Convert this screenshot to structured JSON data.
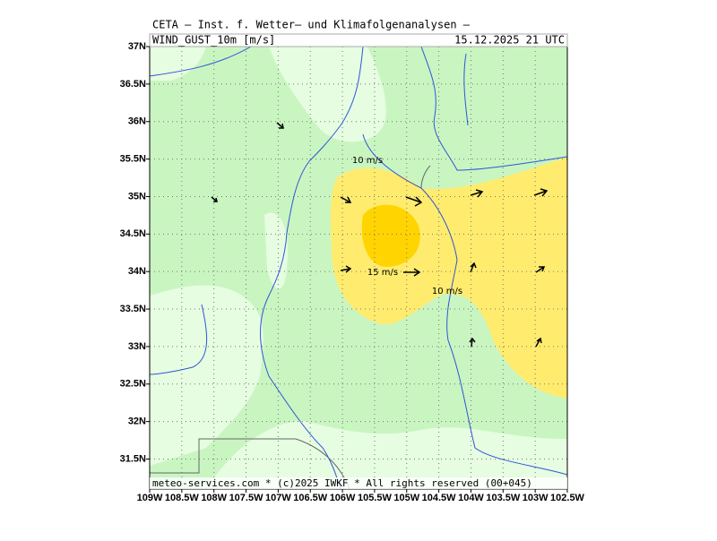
{
  "header": {
    "title": "CETA — Inst. f. Wetter— und Klimafolgenanalysen —",
    "variable": "WIND_GUST_10m [m/s]",
    "valid_time": "15.12.2025 21 UTC"
  },
  "footer": {
    "credit": "meteo-services.com * (c)2025 IWKF * All rights reserved (00+045)"
  },
  "contour_labels": [
    "10 m/s",
    "15 m/s",
    "10 m/s"
  ],
  "axes": {
    "lonlim": [
      -109,
      -102.5
    ],
    "latlim": [
      31.1,
      37
    ],
    "lon_ticks": [
      {
        "value": -109,
        "label": "109W"
      },
      {
        "value": -108.5,
        "label": "108.5W"
      },
      {
        "value": -108,
        "label": "108W"
      },
      {
        "value": -107.5,
        "label": "107.5W"
      },
      {
        "value": -107,
        "label": "107W"
      },
      {
        "value": -106.5,
        "label": "106.5W"
      },
      {
        "value": -106,
        "label": "106W"
      },
      {
        "value": -105.5,
        "label": "105.5W"
      },
      {
        "value": -105,
        "label": "105W"
      },
      {
        "value": -104.5,
        "label": "104.5W"
      },
      {
        "value": -104,
        "label": "104W"
      },
      {
        "value": -103.5,
        "label": "103.5W"
      },
      {
        "value": -103,
        "label": "103W"
      },
      {
        "value": -102.5,
        "label": "102.5W"
      }
    ],
    "lat_ticks": [
      {
        "value": 37,
        "label": "37N"
      },
      {
        "value": 36.5,
        "label": "36.5N"
      },
      {
        "value": 36,
        "label": "36N"
      },
      {
        "value": 35.5,
        "label": "35.5N"
      },
      {
        "value": 35,
        "label": "35N"
      },
      {
        "value": 34.5,
        "label": "34.5N"
      },
      {
        "value": 34,
        "label": "34N"
      },
      {
        "value": 33.5,
        "label": "33.5N"
      },
      {
        "value": 33,
        "label": "33N"
      },
      {
        "value": 32.5,
        "label": "32.5N"
      },
      {
        "value": 32,
        "label": "32N"
      },
      {
        "value": 31.5,
        "label": "31.5N"
      }
    ]
  }
}
